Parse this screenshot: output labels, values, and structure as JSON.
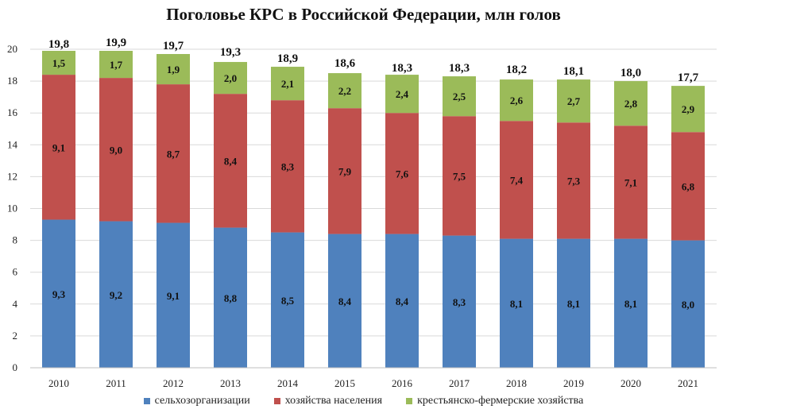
{
  "chart_data": {
    "type": "bar",
    "stacked": true,
    "title": "Поголовье КРС в Российской Федерации, млн голов",
    "categories": [
      "2010",
      "2011",
      "2012",
      "2013",
      "2014",
      "2015",
      "2016",
      "2017",
      "2018",
      "2019",
      "2020",
      "2021"
    ],
    "series": [
      {
        "name": "сельхозорганизации",
        "color": "#4F81BD",
        "values": [
          9.3,
          9.2,
          9.1,
          8.8,
          8.5,
          8.4,
          8.4,
          8.3,
          8.1,
          8.1,
          8.1,
          8.0
        ],
        "labels": [
          "9,3",
          "9,2",
          "9,1",
          "8,8",
          "8,5",
          "8,4",
          "8,4",
          "8,3",
          "8,1",
          "8,1",
          "8,1",
          "8,0"
        ]
      },
      {
        "name": "хозяйства населения",
        "color": "#C0504D",
        "values": [
          9.1,
          9.0,
          8.7,
          8.4,
          8.3,
          7.9,
          7.6,
          7.5,
          7.4,
          7.3,
          7.1,
          6.8
        ],
        "labels": [
          "9,1",
          "9,0",
          "8,7",
          "8,4",
          "8,3",
          "7,9",
          "7,6",
          "7,5",
          "7,4",
          "7,3",
          "7,1",
          "6,8"
        ]
      },
      {
        "name": "крестьянско-фермерские хозяйства",
        "color": "#9BBB59",
        "values": [
          1.5,
          1.7,
          1.9,
          2.0,
          2.1,
          2.2,
          2.4,
          2.5,
          2.6,
          2.7,
          2.8,
          2.9
        ],
        "labels": [
          "1,5",
          "1,7",
          "1,9",
          "2,0",
          "2,1",
          "2,2",
          "2,4",
          "2,5",
          "2,6",
          "2,7",
          "2,8",
          "2,9"
        ]
      }
    ],
    "totals": [
      19.8,
      19.9,
      19.7,
      19.3,
      18.9,
      18.6,
      18.3,
      18.3,
      18.2,
      18.1,
      18.0,
      17.7
    ],
    "total_labels": [
      "19,8",
      "19,9",
      "19,7",
      "19,3",
      "18,9",
      "18,6",
      "18,3",
      "18,3",
      "18,2",
      "18,1",
      "18,0",
      "17,7"
    ],
    "ylim": [
      0,
      20
    ],
    "yticks": [
      0,
      2,
      4,
      6,
      8,
      10,
      12,
      14,
      16,
      18,
      20
    ],
    "grid": true,
    "legend_position": "bottom",
    "xlabel": "",
    "ylabel": ""
  }
}
